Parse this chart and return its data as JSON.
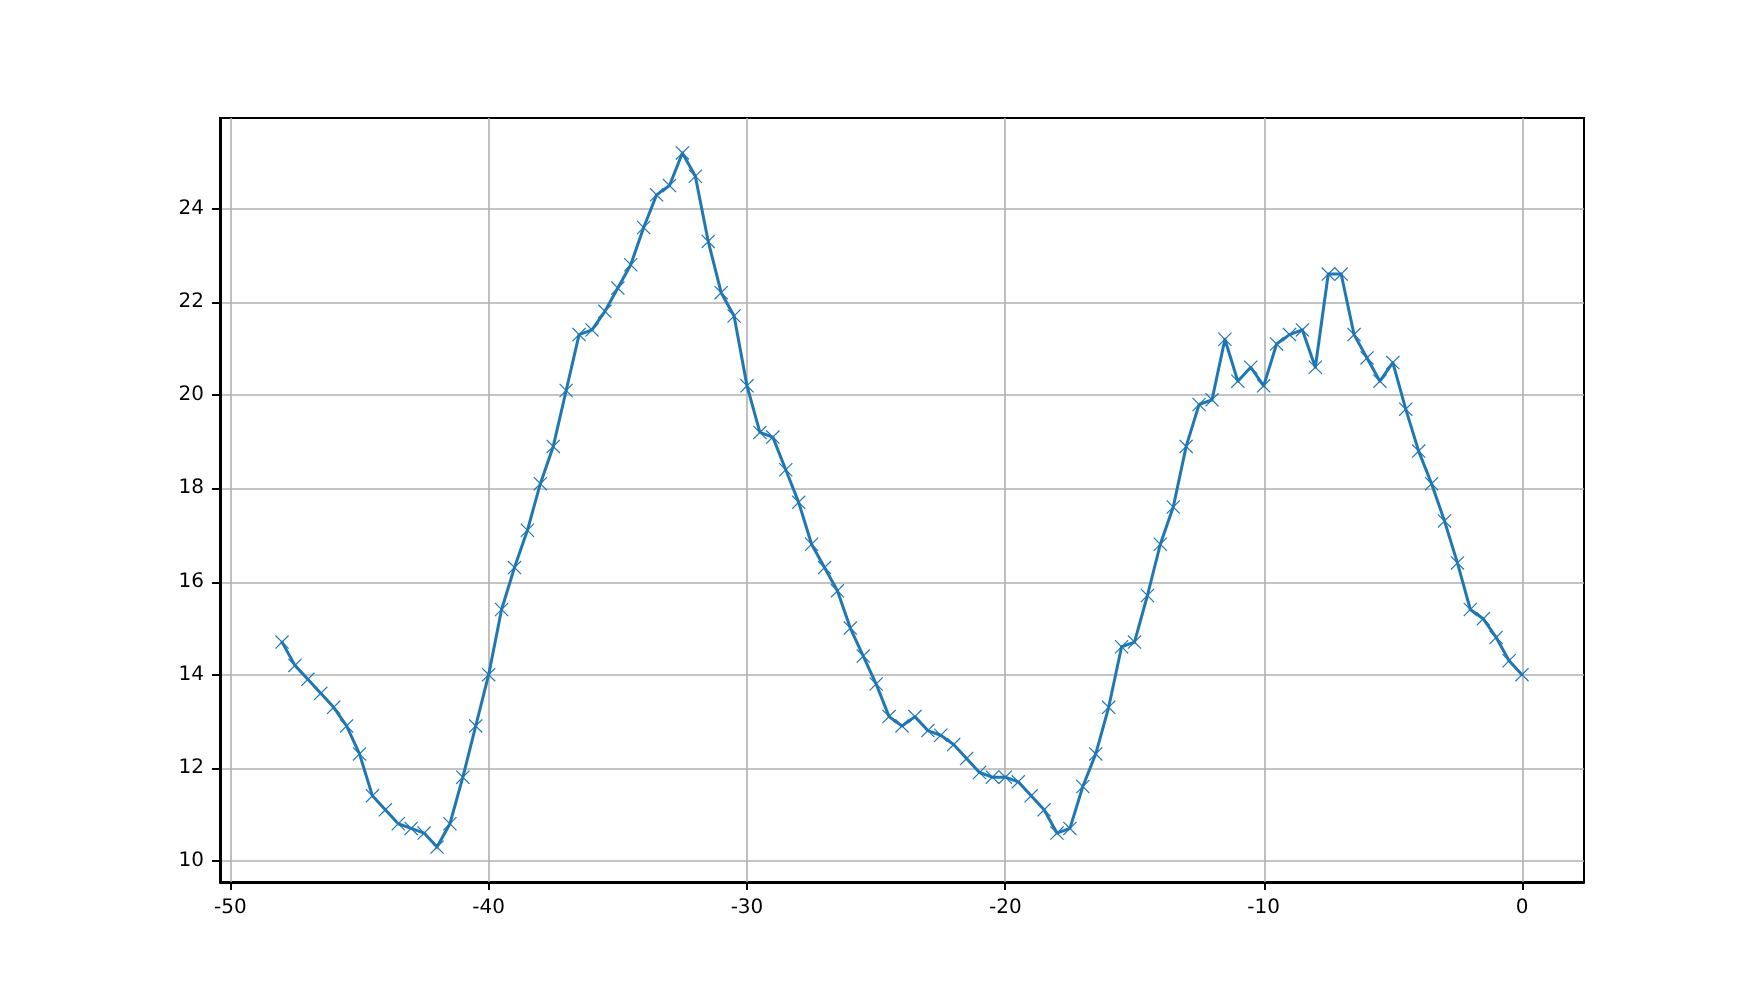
{
  "chart_data": {
    "type": "line",
    "marker": "cross",
    "grid": true,
    "color": "#1f77b4",
    "x": [
      -48,
      -47.5,
      -47,
      -46.5,
      -46,
      -45.5,
      -45,
      -44.5,
      -44,
      -43.5,
      -43,
      -42.5,
      -42,
      -41.5,
      -41,
      -40.5,
      -40,
      -39.5,
      -39,
      -38.5,
      -38,
      -37.5,
      -37,
      -36.5,
      -36,
      -35.5,
      -35,
      -34.5,
      -34,
      -33.5,
      -33,
      -32.5,
      -32,
      -31.5,
      -31,
      -30.5,
      -30,
      -29.5,
      -29,
      -28.5,
      -28,
      -27.5,
      -27,
      -26.5,
      -26,
      -25.5,
      -25,
      -24.5,
      -24,
      -23.5,
      -23,
      -22.5,
      -22,
      -21.5,
      -21,
      -20.5,
      -20,
      -19.5,
      -19,
      -18.5,
      -18,
      -17.5,
      -17,
      -16.5,
      -16,
      -15.5,
      -15,
      -14.5,
      -14,
      -13.5,
      -13,
      -12.5,
      -12,
      -11.5,
      -11,
      -10.5,
      -10,
      -9.5,
      -9,
      -8.5,
      -8,
      -7.5,
      -7,
      -6.5,
      -6,
      -5.5,
      -5,
      -4.5,
      -4,
      -3.5,
      -3,
      -2.5,
      -2,
      -1.5,
      -1,
      -0.5,
      0
    ],
    "values": [
      14.7,
      14.2,
      13.9,
      13.6,
      13.3,
      12.9,
      12.3,
      11.4,
      11.1,
      10.8,
      10.7,
      10.6,
      10.3,
      10.8,
      11.8,
      12.9,
      14.0,
      15.4,
      16.3,
      17.1,
      18.1,
      18.9,
      20.1,
      21.3,
      21.4,
      21.8,
      22.3,
      22.8,
      23.6,
      24.3,
      24.5,
      25.2,
      24.7,
      23.3,
      22.2,
      21.7,
      20.2,
      19.2,
      19.1,
      18.4,
      17.7,
      16.8,
      16.3,
      15.8,
      15.0,
      14.4,
      13.8,
      13.1,
      12.9,
      13.1,
      12.8,
      12.7,
      12.5,
      12.2,
      11.9,
      11.8,
      11.8,
      11.7,
      11.4,
      11.1,
      10.6,
      10.7,
      11.6,
      12.3,
      13.3,
      14.6,
      14.7,
      15.7,
      16.8,
      17.6,
      18.9,
      19.8,
      19.9,
      21.2,
      20.3,
      20.6,
      20.2,
      21.1,
      21.3,
      21.4,
      20.6,
      22.6,
      22.6,
      21.3,
      20.8,
      20.3,
      20.7,
      19.7,
      18.8,
      18.1,
      17.3,
      16.4,
      15.4,
      15.2,
      14.8,
      14.3,
      14.0
    ],
    "xlim": [
      -50.4,
      2.4
    ],
    "ylim": [
      9.55,
      25.95
    ],
    "xticks": [
      -50,
      -40,
      -30,
      -20,
      -10,
      0
    ],
    "yticks": [
      10,
      12,
      14,
      16,
      18,
      20,
      22,
      24
    ]
  }
}
